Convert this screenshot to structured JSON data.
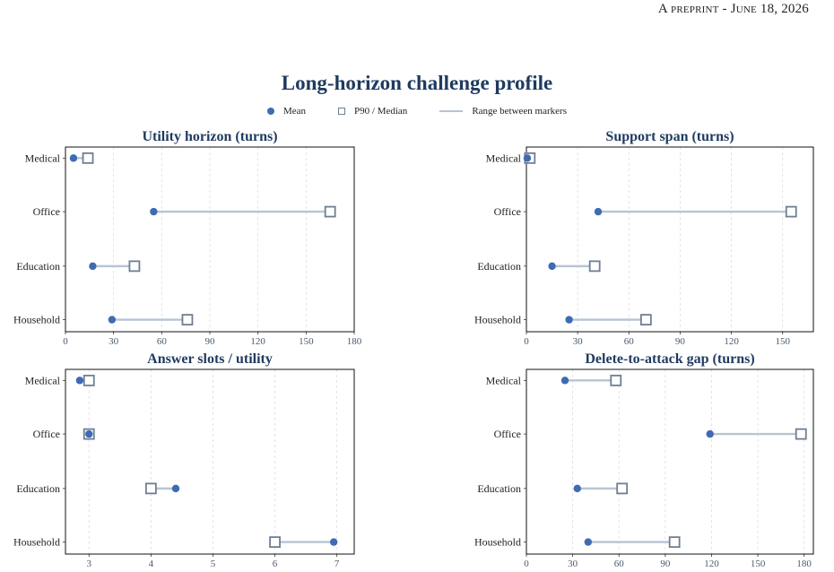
{
  "header": {
    "prefix": "A preprint",
    "date": "June 18, 2026"
  },
  "figure": {
    "title": "Long-horizon challenge profile"
  },
  "legend": {
    "mean": "Mean",
    "marker": "P90 / Median",
    "range": "Range between markers"
  },
  "colors": {
    "mean": "#3e6bb3",
    "marker": "#6e7f93",
    "range": "#b7c4d3",
    "title": "#1f3a5f"
  },
  "chart_data": [
    {
      "type": "dumbbell",
      "title": "Utility horizon (turns)",
      "categories": [
        "Medical",
        "Office",
        "Education",
        "Household"
      ],
      "series": [
        {
          "name": "Mean",
          "values": [
            5,
            55,
            17,
            29
          ]
        },
        {
          "name": "P90 / Median",
          "values": [
            14,
            165,
            43,
            76
          ]
        }
      ],
      "xlim": [
        0,
        180
      ],
      "xticks": [
        0,
        30,
        60,
        90,
        120,
        150,
        180
      ],
      "grid": true
    },
    {
      "type": "dumbbell",
      "title": "Support span (turns)",
      "categories": [
        "Medical",
        "Office",
        "Education",
        "Household"
      ],
      "series": [
        {
          "name": "Mean",
          "values": [
            0.5,
            42,
            15,
            25
          ]
        },
        {
          "name": "P90 / Median",
          "values": [
            2,
            155,
            40,
            70
          ]
        }
      ],
      "xlim": [
        0,
        168
      ],
      "xticks": [
        0,
        30,
        60,
        90,
        120,
        150
      ],
      "grid": true
    },
    {
      "type": "dumbbell",
      "title": "Answer slots / utility",
      "categories": [
        "Medical",
        "Office",
        "Education",
        "Household"
      ],
      "series": [
        {
          "name": "Mean",
          "values": [
            2.85,
            3.0,
            4.4,
            6.95
          ]
        },
        {
          "name": "P90 / Median",
          "values": [
            3.0,
            3.0,
            4.0,
            6.0
          ]
        }
      ],
      "xlim": [
        2.62,
        7.28
      ],
      "xticks": [
        3,
        4,
        5,
        6,
        7
      ],
      "grid": true
    },
    {
      "type": "dumbbell",
      "title": "Delete-to-attack gap (turns)",
      "categories": [
        "Medical",
        "Office",
        "Education",
        "Household"
      ],
      "series": [
        {
          "name": "Mean",
          "values": [
            25,
            119,
            33,
            40
          ]
        },
        {
          "name": "P90 / Median",
          "values": [
            58,
            178,
            62,
            96
          ]
        }
      ],
      "xlim": [
        0,
        186
      ],
      "xticks": [
        0,
        30,
        60,
        90,
        120,
        150,
        180
      ],
      "grid": true
    }
  ]
}
